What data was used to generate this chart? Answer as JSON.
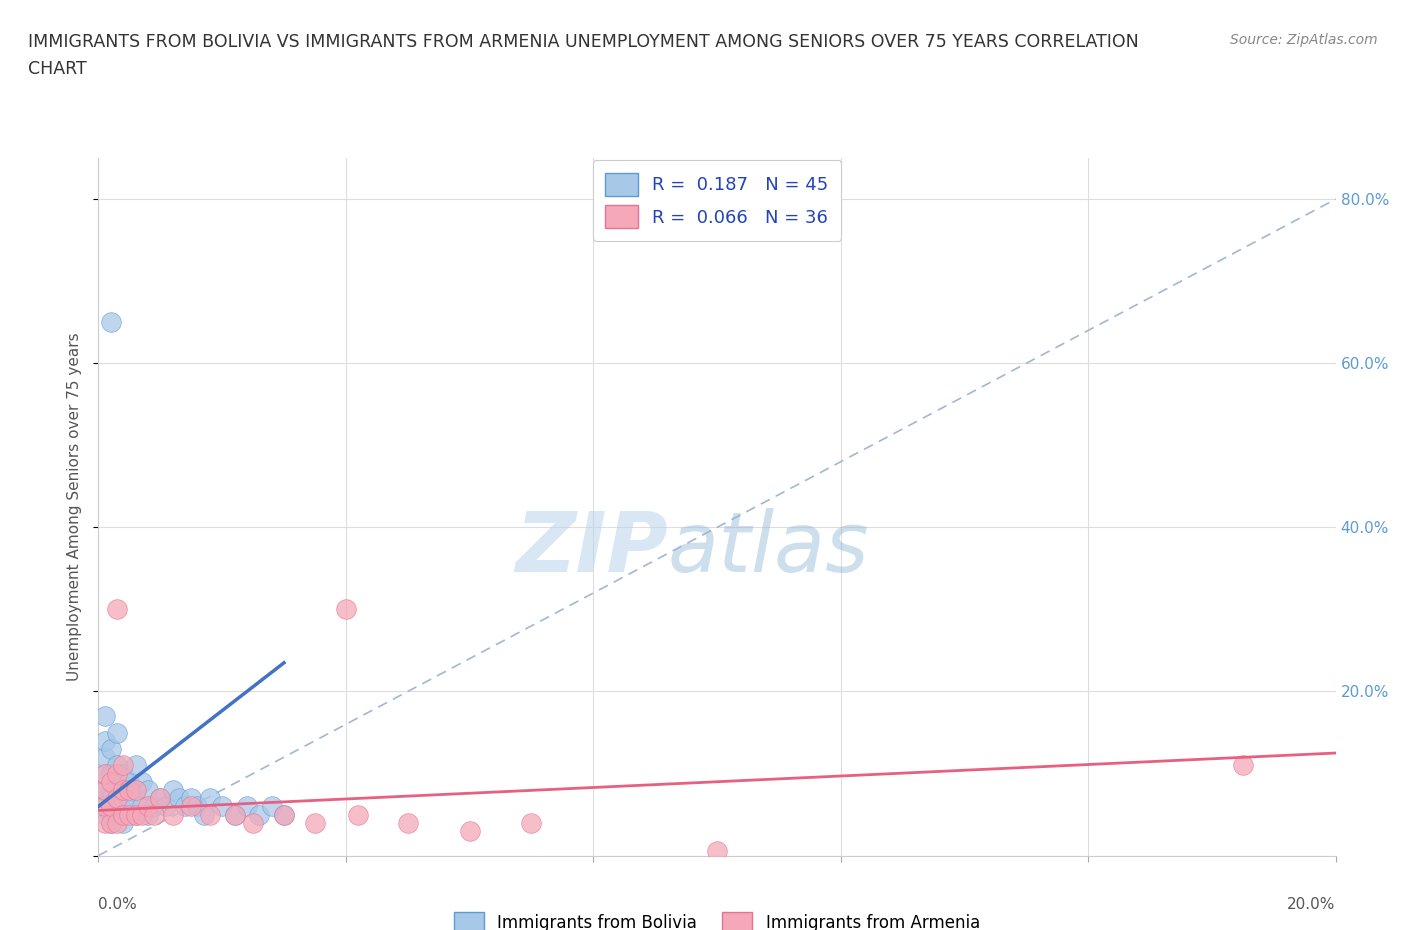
{
  "title_line1": "IMMIGRANTS FROM BOLIVIA VS IMMIGRANTS FROM ARMENIA UNEMPLOYMENT AMONG SENIORS OVER 75 YEARS CORRELATION",
  "title_line2": "CHART",
  "source": "Source: ZipAtlas.com",
  "ylabel": "Unemployment Among Seniors over 75 years",
  "xlim": [
    0,
    0.2
  ],
  "ylim": [
    0,
    0.85
  ],
  "bolivia_R": 0.187,
  "bolivia_N": 45,
  "armenia_R": 0.066,
  "armenia_N": 36,
  "bolivia_color": "#a8c8e8",
  "armenia_color": "#f4a8b8",
  "bolivia_edge_color": "#5b9bd5",
  "armenia_edge_color": "#e87090",
  "bolivia_trend_color": "#4472c4",
  "armenia_trend_color": "#e86080",
  "diagonal_color": "#a0b8d0",
  "watermark_color": "#c8dff0",
  "right_axis_color": "#5b9bd5",
  "bolivia_x": [
    0.002,
    0.001,
    0.001,
    0.001,
    0.001,
    0.001,
    0.001,
    0.001,
    0.002,
    0.002,
    0.002,
    0.002,
    0.003,
    0.003,
    0.003,
    0.003,
    0.004,
    0.004,
    0.004,
    0.005,
    0.005,
    0.006,
    0.006,
    0.006,
    0.007,
    0.007,
    0.008,
    0.008,
    0.009,
    0.01,
    0.011,
    0.012,
    0.013,
    0.014,
    0.015,
    0.016,
    0.017,
    0.018,
    0.02,
    0.022,
    0.024,
    0.026,
    0.028,
    0.03,
    0.002
  ],
  "bolivia_y": [
    0.04,
    0.05,
    0.07,
    0.08,
    0.1,
    0.12,
    0.14,
    0.17,
    0.05,
    0.07,
    0.1,
    0.13,
    0.05,
    0.08,
    0.11,
    0.15,
    0.04,
    0.07,
    0.1,
    0.06,
    0.09,
    0.05,
    0.08,
    0.11,
    0.06,
    0.09,
    0.05,
    0.08,
    0.06,
    0.07,
    0.06,
    0.08,
    0.07,
    0.06,
    0.07,
    0.06,
    0.05,
    0.07,
    0.06,
    0.05,
    0.06,
    0.05,
    0.06,
    0.05,
    0.65
  ],
  "armenia_x": [
    0.001,
    0.001,
    0.001,
    0.001,
    0.002,
    0.002,
    0.002,
    0.003,
    0.003,
    0.003,
    0.004,
    0.004,
    0.004,
    0.005,
    0.005,
    0.006,
    0.006,
    0.007,
    0.008,
    0.009,
    0.01,
    0.012,
    0.015,
    0.018,
    0.022,
    0.025,
    0.03,
    0.035,
    0.04,
    0.042,
    0.05,
    0.06,
    0.07,
    0.1,
    0.185,
    0.003
  ],
  "armenia_y": [
    0.04,
    0.06,
    0.08,
    0.1,
    0.04,
    0.06,
    0.09,
    0.04,
    0.07,
    0.1,
    0.05,
    0.08,
    0.11,
    0.05,
    0.08,
    0.05,
    0.08,
    0.05,
    0.06,
    0.05,
    0.07,
    0.05,
    0.06,
    0.05,
    0.05,
    0.04,
    0.05,
    0.04,
    0.3,
    0.05,
    0.04,
    0.03,
    0.04,
    0.005,
    0.11,
    0.3
  ],
  "bolivia_trend_x0": 0.0,
  "bolivia_trend_y0": 0.06,
  "bolivia_trend_x1": 0.03,
  "bolivia_trend_y1": 0.235,
  "armenia_trend_x0": 0.0,
  "armenia_trend_y0": 0.055,
  "armenia_trend_x1": 0.2,
  "armenia_trend_y1": 0.125
}
